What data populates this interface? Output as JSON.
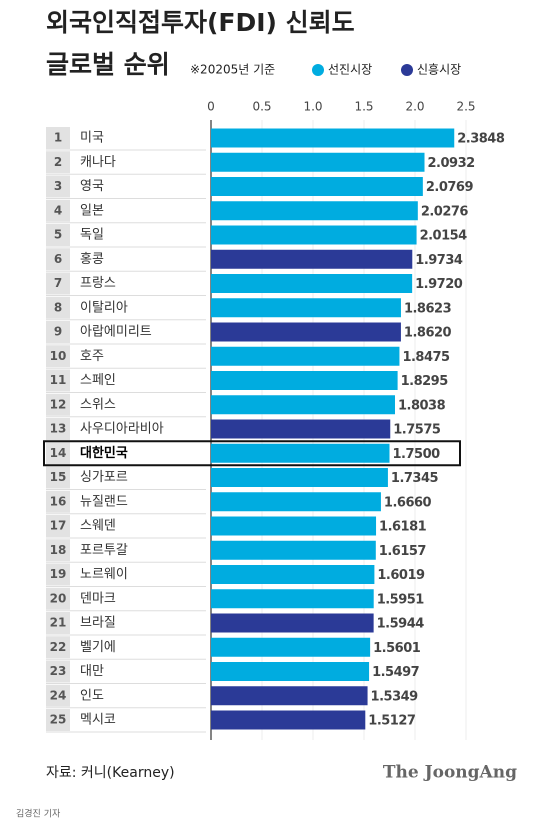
{
  "chart_data": {
    "type": "bar",
    "orientation": "horizontal",
    "title": [
      "외국인직접투자(FDI) 신뢰도",
      "글로벌 순위"
    ],
    "subtitle": "※20205년 기준",
    "source": "자료: 커니(Kearney)",
    "brand": "The JoongAng",
    "byline": "김경진 기자",
    "ranks": [
      1,
      2,
      3,
      4,
      5,
      6,
      7,
      8,
      9,
      10,
      11,
      12,
      13,
      14,
      15,
      16,
      17,
      18,
      19,
      20,
      21,
      22,
      23,
      24,
      25
    ],
    "categories": [
      "미국",
      "캐나다",
      "영국",
      "일본",
      "독일",
      "홍콩",
      "프랑스",
      "이탈리아",
      "아랍에미리트",
      "호주",
      "스페인",
      "스위스",
      "사우디아라비아",
      "대한민국",
      "싱가포르",
      "뉴질랜드",
      "스웨덴",
      "포르투갈",
      "노르웨이",
      "덴마크",
      "브라질",
      "벨기에",
      "대만",
      "인도",
      "멕시코"
    ],
    "series": [
      {
        "name": "선진시장",
        "color": "#00ace0",
        "values": [
          2.3848,
          2.0932,
          2.0769,
          2.0276,
          2.0154,
          null,
          1.972,
          1.8623,
          null,
          1.8475,
          1.8295,
          1.8038,
          null,
          1.75,
          1.7345,
          1.666,
          1.6181,
          1.6157,
          1.6019,
          1.5951,
          null,
          1.5601,
          1.5497,
          null,
          null
        ],
        "value_labels": [
          "2.3848",
          "2.0932",
          "2.0769",
          "2.0276",
          "2.0154",
          null,
          "1.9720",
          "1.8623",
          null,
          "1.8475",
          "1.8295",
          "1.8038",
          null,
          "1.7500",
          "1.7345",
          "1.6660",
          "1.6181",
          "1.6157",
          "1.6019",
          "1.5951",
          null,
          "1.5601",
          "1.5497",
          null,
          null
        ]
      },
      {
        "name": "신흥시장",
        "color": "#2b3a97",
        "values": [
          null,
          null,
          null,
          null,
          null,
          1.9734,
          null,
          null,
          1.862,
          null,
          null,
          null,
          1.7575,
          null,
          null,
          null,
          null,
          null,
          null,
          null,
          1.5944,
          null,
          null,
          1.5349,
          1.5127
        ],
        "value_labels": [
          null,
          null,
          null,
          null,
          null,
          "1.9734",
          null,
          null,
          "1.8620",
          null,
          null,
          null,
          "1.7575",
          null,
          null,
          null,
          null,
          null,
          null,
          null,
          "1.5944",
          null,
          null,
          "1.5349",
          "1.5127"
        ]
      }
    ],
    "xlim": [
      0,
      2.5
    ],
    "xticks": [
      0,
      0.5,
      {
        "value": 1,
        "label": "1.0"
      },
      1.5,
      {
        "value": 2,
        "label": "2.0"
      },
      2.5
    ],
    "highlight": 13
  }
}
